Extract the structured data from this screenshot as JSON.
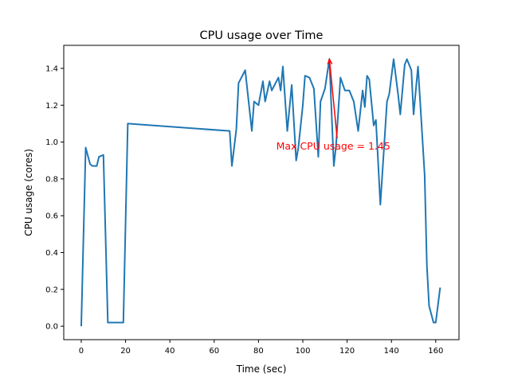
{
  "chart_data": {
    "type": "line",
    "title": "CPU usage over Time",
    "xlabel": "Time (sec)",
    "ylabel": "CPU usage (cores)",
    "xlim": [
      -7.9,
      170.5
    ],
    "ylim": [
      -0.073,
      1.525
    ],
    "xticks": [
      0,
      20,
      40,
      60,
      80,
      100,
      120,
      140,
      160
    ],
    "xtick_labels": [
      "0",
      "20",
      "40",
      "60",
      "80",
      "100",
      "120",
      "140",
      "160"
    ],
    "yticks": [
      0,
      0.2,
      0.4,
      0.6,
      0.8,
      1.0,
      1.2,
      1.4
    ],
    "ytick_labels": [
      "0.0",
      "0.2",
      "0.4",
      "0.6",
      "0.8",
      "1.0",
      "1.2",
      "1.4"
    ],
    "grid": false,
    "series": [
      {
        "name": "CPU usage",
        "color": "#1f77b4",
        "x": [
          0,
          2,
          4,
          5,
          7,
          8,
          10,
          12,
          14,
          16,
          19,
          21,
          67,
          68,
          70,
          71,
          74,
          77,
          78,
          80,
          82,
          83,
          85,
          86,
          89,
          90,
          91,
          93,
          95,
          97,
          98,
          100,
          101,
          103,
          105,
          107,
          108,
          110,
          112,
          114,
          115,
          117,
          119,
          121,
          123,
          125,
          127,
          128,
          129,
          130,
          132,
          133,
          135,
          138,
          139,
          141,
          143,
          144,
          146,
          147,
          149,
          150,
          152,
          155,
          156,
          157,
          159,
          160,
          162
        ],
        "y": [
          0,
          0.97,
          0.88,
          0.87,
          0.87,
          0.92,
          0.93,
          0.02,
          0.02,
          0.02,
          0.02,
          1.1,
          1.06,
          0.87,
          1.07,
          1.32,
          1.39,
          1.06,
          1.22,
          1.2,
          1.33,
          1.22,
          1.33,
          1.28,
          1.35,
          1.28,
          1.41,
          1.06,
          1.31,
          0.9,
          0.97,
          1.2,
          1.36,
          1.35,
          1.29,
          0.92,
          1.22,
          1.29,
          1.45,
          0.87,
          0.98,
          1.35,
          1.28,
          1.28,
          1.22,
          1.06,
          1.28,
          1.19,
          1.36,
          1.34,
          1.09,
          1.12,
          0.66,
          1.22,
          1.26,
          1.45,
          1.26,
          1.15,
          1.42,
          1.45,
          1.39,
          1.15,
          1.41,
          0.82,
          0.33,
          0.11,
          0.02,
          0.02,
          0.21
        ]
      }
    ],
    "annotations": [
      {
        "text": "Max CPU usage = 1.45",
        "color": "#ff0000",
        "xy": [
          112,
          1.45
        ],
        "xytext": [
          88,
          0.96
        ],
        "arrow_tail": [
          115.5,
          1.02
        ]
      }
    ]
  }
}
